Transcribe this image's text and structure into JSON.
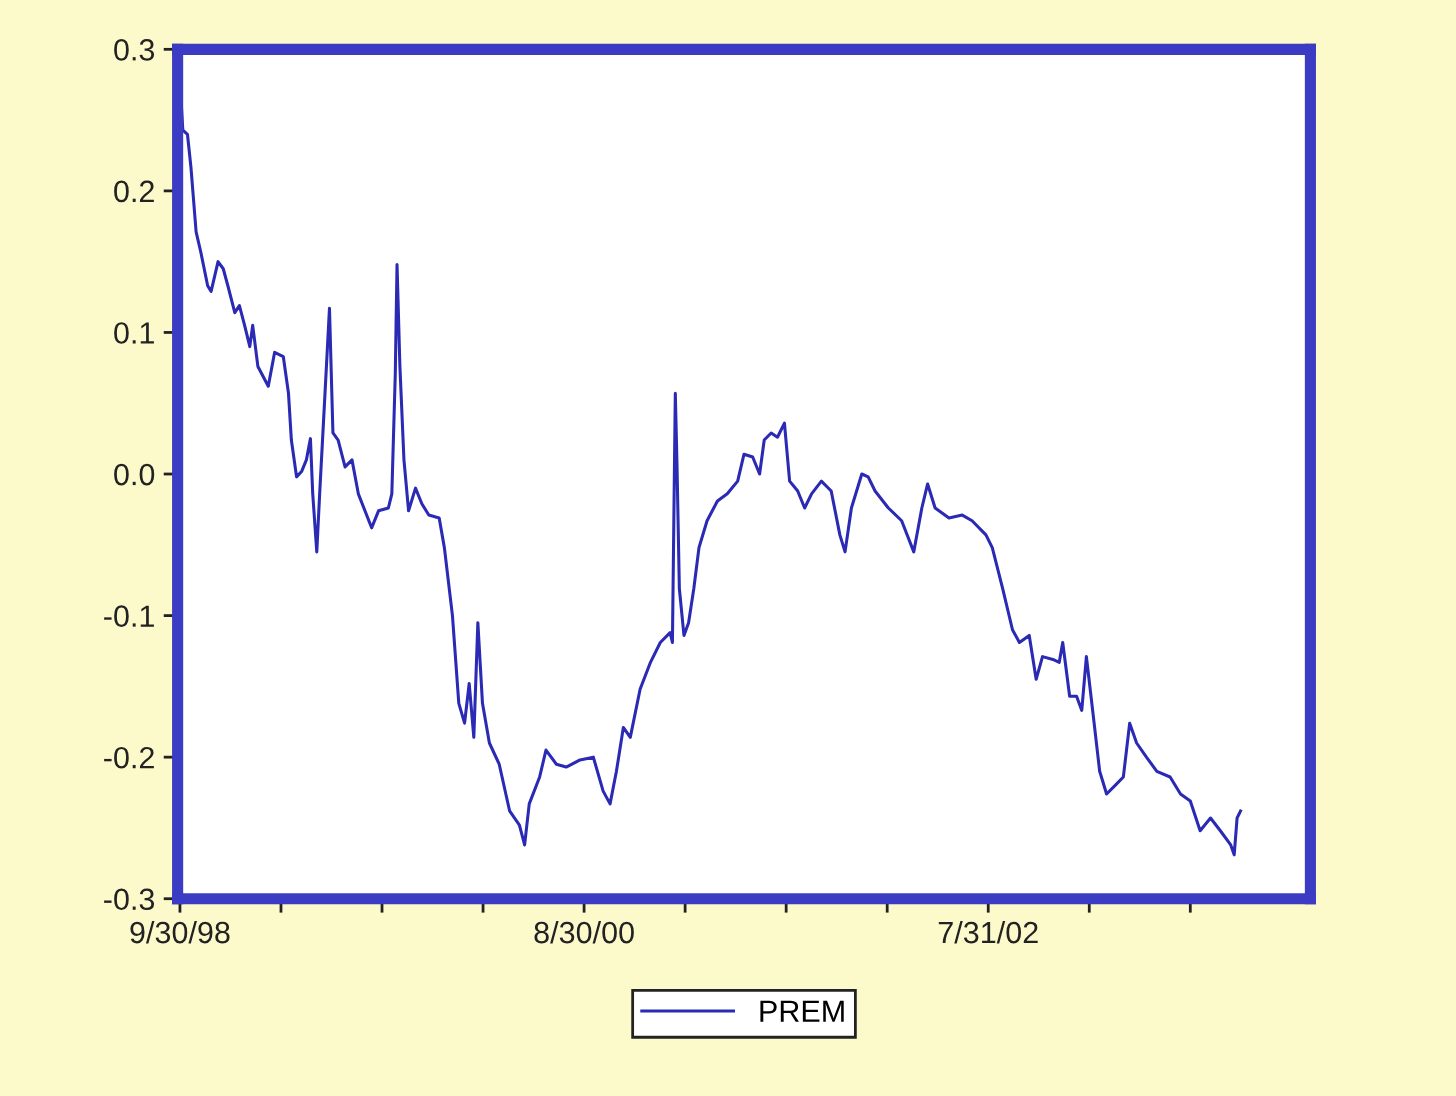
{
  "chart_data": {
    "type": "line",
    "x": [
      "1998-10-02",
      "1998-10-05",
      "1998-10-13",
      "1998-10-19",
      "1998-10-28",
      "1998-11-05",
      "1998-11-17",
      "1998-11-23",
      "1998-12-05",
      "1998-12-14",
      "1998-12-22",
      "1999-01-03",
      "1999-01-11",
      "1999-01-20",
      "1999-01-29",
      "1999-02-03",
      "1999-02-12",
      "1999-03-02",
      "1999-03-13",
      "1999-03-28",
      "1999-04-06",
      "1999-04-11",
      "1999-04-20",
      "1999-04-29",
      "1999-05-07",
      "1999-05-14",
      "1999-05-18",
      "1999-05-25",
      "1999-05-30",
      "1999-06-08",
      "1999-06-16",
      "1999-06-22",
      "1999-07-01",
      "1999-07-13",
      "1999-07-25",
      "1999-08-05",
      "1999-08-28",
      "1999-09-09",
      "1999-09-26",
      "1999-10-02",
      "1999-10-08",
      "1999-10-11",
      "1999-10-16",
      "1999-10-23",
      "1999-10-31",
      "1999-11-12",
      "1999-11-23",
      "1999-12-05",
      "1999-12-23",
      "2000-01-01",
      "2000-01-15",
      "2000-01-26",
      "2000-02-05",
      "2000-02-13",
      "2000-02-21",
      "2000-02-28",
      "2000-03-07",
      "2000-03-19",
      "2000-04-05",
      "2000-04-23",
      "2000-05-10",
      "2000-05-19",
      "2000-05-27",
      "2000-06-14",
      "2000-06-25",
      "2000-07-13",
      "2000-07-30",
      "2000-08-23",
      "2000-09-15",
      "2000-10-02",
      "2000-10-14",
      "2000-10-25",
      "2000-11-06",
      "2000-11-18",
      "2000-12-05",
      "2000-12-23",
      "2001-01-09",
      "2001-01-26",
      "2001-01-30",
      "2001-02-04",
      "2001-02-07",
      "2001-02-11",
      "2001-02-19",
      "2001-02-27",
      "2001-03-08",
      "2001-03-17",
      "2001-03-31",
      "2001-04-18",
      "2001-05-05",
      "2001-05-23",
      "2001-06-03",
      "2001-06-18",
      "2001-06-30",
      "2001-07-08",
      "2001-07-20",
      "2001-07-31",
      "2001-08-12",
      "2001-08-21",
      "2001-09-04",
      "2001-09-16",
      "2001-09-28",
      "2001-10-15",
      "2001-11-01",
      "2001-11-16",
      "2001-11-25",
      "2001-12-06",
      "2001-12-24",
      "2002-01-04",
      "2002-01-16",
      "2002-02-08",
      "2002-03-03",
      "2002-03-24",
      "2002-04-07",
      "2002-04-17",
      "2002-04-30",
      "2002-05-24",
      "2002-06-16",
      "2002-07-03",
      "2002-07-27",
      "2002-08-07",
      "2002-08-25",
      "2002-09-11",
      "2002-09-23",
      "2002-10-10",
      "2002-10-22",
      "2002-11-02",
      "2002-11-20",
      "2002-12-01",
      "2002-12-07",
      "2002-12-19",
      "2002-12-31",
      "2003-01-09",
      "2003-01-17",
      "2003-01-29",
      "2003-02-09",
      "2003-02-21",
      "2003-03-10",
      "2003-03-22",
      "2003-04-02",
      "2003-04-14",
      "2003-05-01",
      "2003-05-19",
      "2003-06-11",
      "2003-06-29",
      "2003-07-16",
      "2003-08-02",
      "2003-08-20",
      "2003-09-06",
      "2003-09-24",
      "2003-09-30",
      "2003-10-05",
      "2003-10-11"
    ],
    "series": [
      {
        "name": "PREM",
        "color": "#2a2ab4",
        "values": [
          0.264,
          0.243,
          0.24,
          0.217,
          0.171,
          0.157,
          0.133,
          0.129,
          0.15,
          0.145,
          0.133,
          0.114,
          0.119,
          0.105,
          0.09,
          0.105,
          0.076,
          0.062,
          0.086,
          0.083,
          0.057,
          0.024,
          -0.002,
          0.002,
          0.01,
          0.025,
          -0.014,
          -0.055,
          -0.014,
          0.055,
          0.117,
          0.029,
          0.024,
          0.005,
          0.01,
          -0.014,
          -0.038,
          -0.026,
          -0.024,
          -0.014,
          0.071,
          0.148,
          0.076,
          0.01,
          -0.026,
          -0.01,
          -0.021,
          -0.029,
          -0.031,
          -0.052,
          -0.1,
          -0.162,
          -0.176,
          -0.148,
          -0.186,
          -0.105,
          -0.162,
          -0.19,
          -0.205,
          -0.238,
          -0.248,
          -0.262,
          -0.233,
          -0.214,
          -0.195,
          -0.205,
          -0.207,
          -0.202,
          -0.2,
          -0.224,
          -0.233,
          -0.21,
          -0.179,
          -0.186,
          -0.152,
          -0.133,
          -0.119,
          -0.112,
          -0.119,
          0.057,
          0.005,
          -0.081,
          -0.114,
          -0.105,
          -0.081,
          -0.052,
          -0.033,
          -0.019,
          -0.014,
          -0.005,
          0.014,
          0.012,
          0.0,
          0.024,
          0.029,
          0.026,
          0.036,
          -0.005,
          -0.012,
          -0.024,
          -0.014,
          -0.005,
          -0.012,
          -0.043,
          -0.055,
          -0.024,
          0.0,
          -0.002,
          -0.012,
          -0.024,
          -0.033,
          -0.055,
          -0.024,
          -0.007,
          -0.024,
          -0.031,
          -0.029,
          -0.033,
          -0.043,
          -0.052,
          -0.081,
          -0.11,
          -0.119,
          -0.114,
          -0.145,
          -0.129,
          -0.131,
          -0.133,
          -0.119,
          -0.157,
          -0.157,
          -0.167,
          -0.129,
          -0.171,
          -0.21,
          -0.226,
          -0.219,
          -0.214,
          -0.176,
          -0.19,
          -0.2,
          -0.21,
          -0.214,
          -0.226,
          -0.231,
          -0.252,
          -0.243,
          -0.252,
          -0.262,
          -0.269,
          -0.243,
          -0.238
        ]
      }
    ],
    "xlim": [
      "1998-09-26",
      "2004-02-09"
    ],
    "xticks": [
      {
        "value": "1998-09-30",
        "label": "9/30/98"
      },
      {
        "value": "1999-03-24",
        "label": null
      },
      {
        "value": "1999-09-15",
        "label": null
      },
      {
        "value": "2000-03-08",
        "label": null
      },
      {
        "value": "2000-08-30",
        "label": "8/30/00"
      },
      {
        "value": "2001-02-21",
        "label": null
      },
      {
        "value": "2001-08-15",
        "label": null
      },
      {
        "value": "2002-02-06",
        "label": null
      },
      {
        "value": "2002-07-31",
        "label": "7/31/02"
      },
      {
        "value": "2003-01-22",
        "label": null
      },
      {
        "value": "2003-07-16",
        "label": null
      }
    ],
    "ylim": [
      -0.3,
      0.3
    ],
    "yticks": [
      {
        "value": -0.3,
        "label": "-0.3"
      },
      {
        "value": -0.2,
        "label": "-0.2"
      },
      {
        "value": -0.1,
        "label": "-0.1"
      },
      {
        "value": 0.0,
        "label": "0.0"
      },
      {
        "value": 0.1,
        "label": "0.1"
      },
      {
        "value": 0.2,
        "label": "0.2"
      },
      {
        "value": 0.3,
        "label": "0.3"
      }
    ],
    "grid": false,
    "legend": "bottom",
    "marker": "none",
    "line_style": "solid"
  }
}
